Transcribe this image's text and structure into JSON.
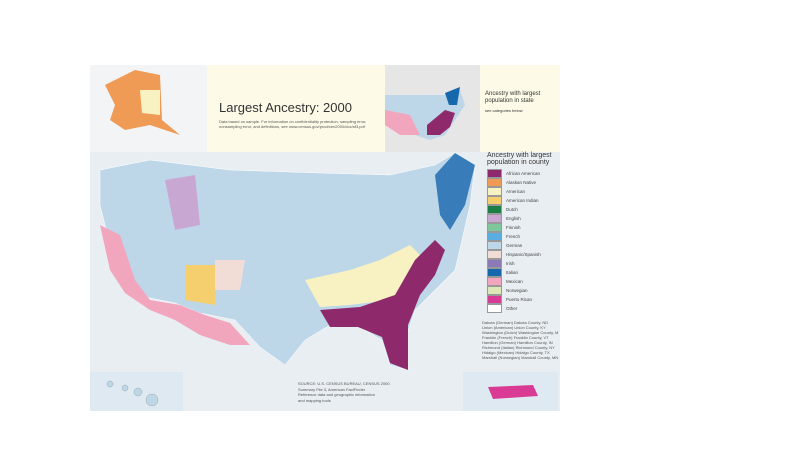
{
  "title": "Largest Ancestry: 2000",
  "subtitle": "Data based on sample. For information on confidentiality protection, sampling error, nonsampling error, and definitions, see www.census.gov/prod/cen2000/doc/sf3.pdf",
  "state_inset": {
    "title": "Ancestry with largest population in state",
    "subtitle": "see categories below"
  },
  "legend": {
    "title": "Ancestry with largest population in county",
    "items": [
      {
        "label": "African American",
        "color": "#8e2a6b"
      },
      {
        "label": "Alaskan Native",
        "color": "#ef9a55"
      },
      {
        "label": "American",
        "color": "#f8f2c2"
      },
      {
        "label": "American Indian",
        "color": "#f5cf6e"
      },
      {
        "label": "Dutch",
        "color": "#1b7f45"
      },
      {
        "label": "English",
        "color": "#c8a8d3"
      },
      {
        "label": "Finnish",
        "color": "#7ec79a"
      },
      {
        "label": "French",
        "color": "#5aade0"
      },
      {
        "label": "German",
        "color": "#bdd6e8"
      },
      {
        "label": "Hispanic/Spanish",
        "color": "#f2dcd6"
      },
      {
        "label": "Irish",
        "color": "#8c79b8"
      },
      {
        "label": "Italian",
        "color": "#1767ad"
      },
      {
        "label": "Mexican",
        "color": "#f2a6bd"
      },
      {
        "label": "Norwegian",
        "color": "#dde8b6"
      },
      {
        "label": "Puerto Rican",
        "color": "#d93a93"
      },
      {
        "label": "Other",
        "color": "#ffffff"
      }
    ]
  },
  "notes": [
    "Dakota (German) Dakota County, ND",
    "Union (American) Union County, KY",
    "Washington (Dutch) Washington County, MN",
    "Franklin (French) Franklin County, VT",
    "Hamilton (German) Hamilton County, IN",
    "Richmond (Italian) Richmond County, NY",
    "Hidalgo (Mexican) Hidalgo County, TX",
    "Marshall (Norwegian) Marshall County, MN"
  ],
  "source": [
    "SOURCE: U.S. CENSUS BUREAU, CENSUS 2000",
    "Summary File 3, American FactFinder",
    "Reference data and geographic information",
    "and mapping tools"
  ]
}
